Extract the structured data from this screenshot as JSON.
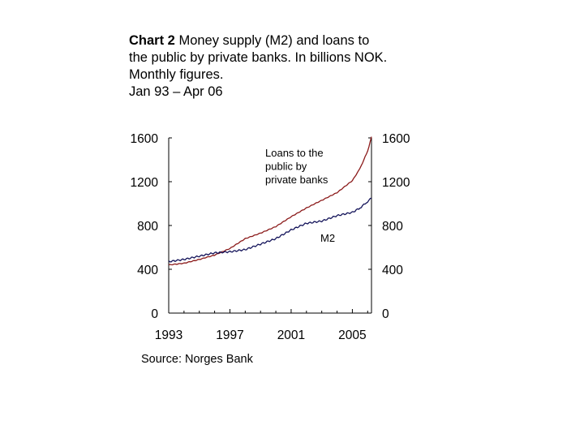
{
  "title": {
    "chart_no": "Chart 2",
    "line1": "Money supply (M2) and loans to",
    "line2": "the public by private banks. In billions NOK.",
    "line3": "Monthly figures.",
    "line4": "Jan 93 – Apr 06"
  },
  "source": "Source: Norges Bank",
  "colors": {
    "loans": "#8b1a1a",
    "m2": "#14145a",
    "axis": "#000000"
  },
  "chart_data": {
    "type": "line",
    "title": "Money supply (M2) and loans to the public by private banks. In billions NOK. Monthly figures.",
    "xlabel": "",
    "ylabel": "",
    "xlim": [
      1993.0,
      2006.25
    ],
    "ylim": [
      0,
      1600
    ],
    "x_ticks": [
      1993,
      1997,
      2001,
      2005
    ],
    "x_tick_labels": [
      "1993",
      "1997",
      "2001",
      "2005"
    ],
    "y_ticks": [
      0,
      400,
      800,
      1200,
      1600
    ],
    "y_tick_labels_left": [
      "0",
      "400",
      "800",
      "1200",
      "1600"
    ],
    "y_tick_labels_right": [
      "0",
      "400",
      "800",
      "1200",
      "1600"
    ],
    "grid": false,
    "series": [
      {
        "name": "Loans to the public by private banks",
        "x": [
          1993.0,
          1994.0,
          1995.0,
          1996.0,
          1997.0,
          1998.0,
          1999.0,
          2000.0,
          2001.0,
          2002.0,
          2003.0,
          2004.0,
          2005.0,
          2005.5,
          2006.0,
          2006.25
        ],
        "values": [
          440,
          455,
          490,
          530,
          590,
          680,
          730,
          790,
          880,
          960,
          1030,
          1100,
          1210,
          1320,
          1480,
          1610
        ]
      },
      {
        "name": "M2",
        "x": [
          1993.0,
          1994.0,
          1995.0,
          1996.0,
          1997.0,
          1998.0,
          1999.0,
          2000.0,
          2001.0,
          2002.0,
          2003.0,
          2004.0,
          2005.0,
          2005.5,
          2006.0,
          2006.25
        ],
        "values": [
          470,
          490,
          520,
          550,
          560,
          580,
          630,
          680,
          760,
          820,
          840,
          890,
          920,
          960,
          1020,
          1050
        ]
      }
    ],
    "annotations": [
      {
        "series": "Loans to the public by private banks",
        "lines": [
          "Loans to the",
          "public by",
          "private banks"
        ]
      },
      {
        "series": "M2",
        "lines": [
          "M2"
        ]
      }
    ]
  }
}
